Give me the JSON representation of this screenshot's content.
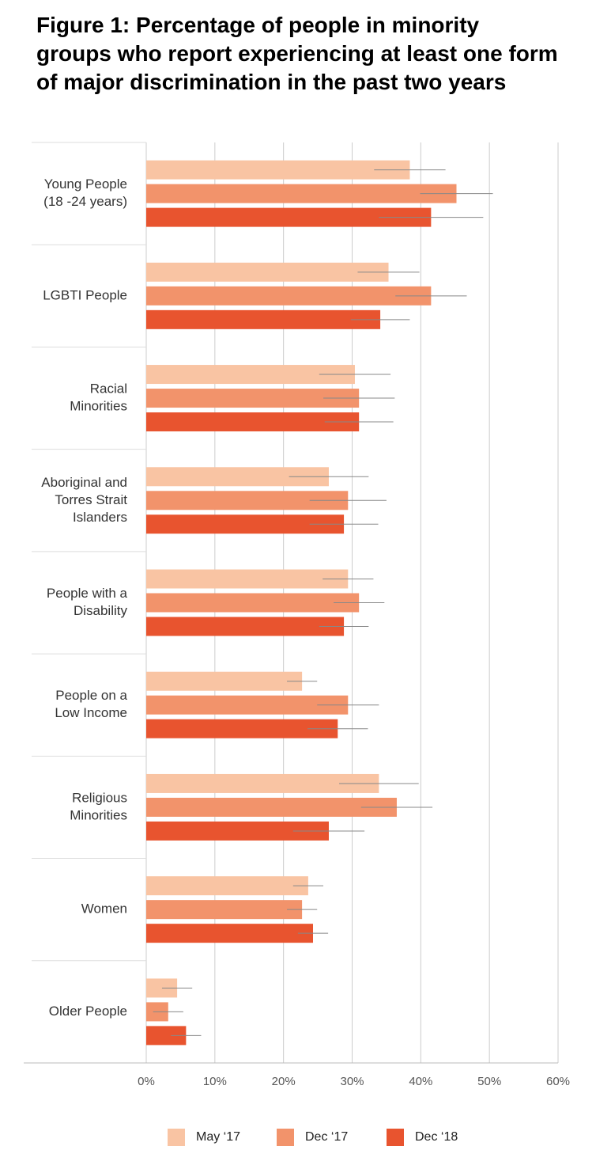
{
  "chart_data": {
    "type": "hbar-error",
    "title": "Figure 1: Percentage of people in minority groups who report experiencing at least one form of major discrimination in the past two years",
    "categories": [
      [
        "Young People",
        "(18 -24 years)"
      ],
      [
        "LGBTI People"
      ],
      [
        "Racial",
        "Minorities"
      ],
      [
        "Aboriginal and",
        "Torres Strait",
        "Islanders"
      ],
      [
        "People with a",
        "Disability"
      ],
      [
        "People on a",
        "Low Income"
      ],
      [
        "Religious",
        "Minorities"
      ],
      [
        "Women"
      ],
      [
        "Older People"
      ]
    ],
    "series": [
      {
        "name": "May ‘17",
        "color": "#f9c4a3",
        "values": [
          38.4,
          35.3,
          30.4,
          26.6,
          29.4,
          22.7,
          33.9,
          23.6,
          4.5
        ],
        "errors": [
          5.2,
          4.5,
          5.2,
          5.8,
          3.7,
          2.2,
          5.8,
          2.2,
          2.2
        ]
      },
      {
        "name": "Dec ‘17",
        "color": "#f2936b",
        "values": [
          45.2,
          41.5,
          31.0,
          29.4,
          31.0,
          29.4,
          36.5,
          22.7,
          3.2
        ],
        "errors": [
          5.3,
          5.2,
          5.2,
          5.6,
          3.7,
          4.5,
          5.2,
          2.2,
          2.2
        ]
      },
      {
        "name": "Dec ‘18",
        "color": "#e8542f",
        "values": [
          41.5,
          34.1,
          31.0,
          28.8,
          28.8,
          27.9,
          26.6,
          24.3,
          5.8
        ],
        "errors": [
          7.6,
          4.3,
          5.0,
          5.0,
          3.6,
          4.4,
          5.2,
          2.2,
          2.2
        ]
      }
    ],
    "xlim": [
      0,
      60
    ],
    "xticks": [
      {
        "value": 0,
        "label": "0%"
      },
      {
        "value": 10,
        "label": "10%"
      },
      {
        "value": 20,
        "label": "20%"
      },
      {
        "value": 30,
        "label": "30%"
      },
      {
        "value": 40,
        "label": "40%"
      },
      {
        "value": 50,
        "label": "50%"
      },
      {
        "value": 60,
        "label": "60%"
      }
    ],
    "grid": true,
    "legend": "bottom"
  }
}
